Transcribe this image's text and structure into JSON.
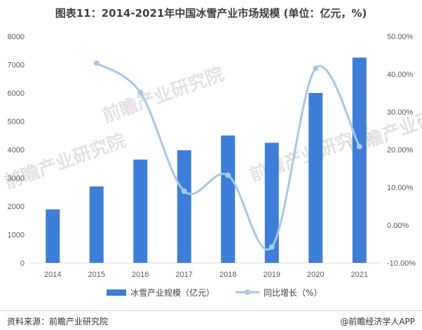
{
  "page": {
    "title": "图表11：2014-2021年中国冰雪产业市场规模 (单位：亿元，%)",
    "source": "资料来源：前瞻产业研究院",
    "brand": "@前瞻经济学人APP",
    "watermark": "前瞻产业研究院"
  },
  "chart_data": {
    "type": "bar",
    "title": "图表11：2014-2021年中国冰雪产业市场规模 (单位：亿元，%)",
    "categories": [
      "2014",
      "2015",
      "2016",
      "2017",
      "2018",
      "2019",
      "2020",
      "2021"
    ],
    "series": [
      {
        "name": "冰雪产业规模（亿元）",
        "kind": "bar",
        "axis": "left",
        "color": "#3d7ed8",
        "values": [
          1890,
          2700,
          3647,
          3976,
          4500,
          4240,
          6000,
          7250
        ]
      },
      {
        "name": "同比增长（%）",
        "kind": "line",
        "axis": "right",
        "color": "#a6c8ec",
        "values": [
          null,
          42.9,
          35.1,
          9.0,
          13.2,
          -5.8,
          41.5,
          20.8
        ]
      }
    ],
    "y_left": {
      "min": 0,
      "max": 8000,
      "ticks": [
        "0",
        "1000",
        "2000",
        "3000",
        "4000",
        "5000",
        "6000",
        "7000",
        "8000"
      ]
    },
    "y_right": {
      "min": -10,
      "max": 50,
      "ticks": [
        "-10.00%",
        "0.00%",
        "10.00%",
        "20.00%",
        "30.00%",
        "40.00%",
        "50.00%"
      ]
    },
    "grid": false,
    "legend_position": "bottom"
  }
}
